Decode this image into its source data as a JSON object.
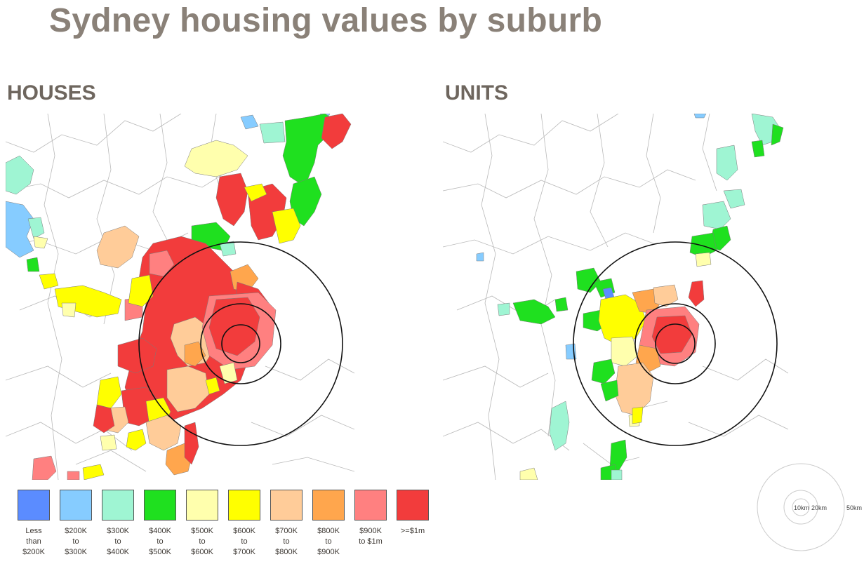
{
  "title": "Sydney housing values by suburb",
  "maps": {
    "houses": {
      "heading": "HOUSES"
    },
    "units": {
      "heading": "UNITS"
    }
  },
  "legend": {
    "items": [
      {
        "label": "Less\nthan\n$200K",
        "color": "#5b8cff"
      },
      {
        "label": "$200K\nto\n$300K",
        "color": "#86ccff"
      },
      {
        "label": "$300K\nto\n$400K",
        "color": "#9ff5d3"
      },
      {
        "label": "$400K\nto\n$500K",
        "color": "#1fe01f"
      },
      {
        "label": "$500K\nto\n$600K",
        "color": "#ffffad"
      },
      {
        "label": "$600K\nto\n$700K",
        "color": "#ffff00"
      },
      {
        "label": "$700K\nto\n$800K",
        "color": "#ffcc99"
      },
      {
        "label": "$800K\nto\n$900K",
        "color": "#ffa64d"
      },
      {
        "label": "$900K\nto $1m",
        "color": "#ff8080"
      },
      {
        "label": ">=$1m",
        "color": "#f23c3c"
      }
    ]
  },
  "scale": {
    "rings": [
      {
        "label": "10km"
      },
      {
        "label": "20km"
      },
      {
        "label": "50km"
      }
    ]
  }
}
